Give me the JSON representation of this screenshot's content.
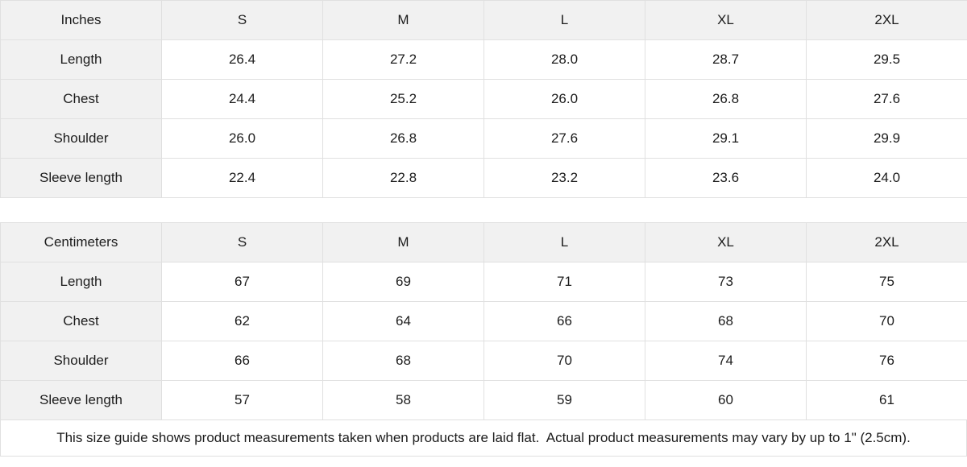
{
  "tables": [
    {
      "unit_label": "Inches",
      "sizes": [
        "S",
        "M",
        "L",
        "XL",
        "2XL"
      ],
      "rows": [
        {
          "label": "Length",
          "values": [
            "26.4",
            "27.2",
            "28.0",
            "28.7",
            "29.5"
          ]
        },
        {
          "label": "Chest",
          "values": [
            "24.4",
            "25.2",
            "26.0",
            "26.8",
            "27.6"
          ]
        },
        {
          "label": "Shoulder",
          "values": [
            "26.0",
            "26.8",
            "27.6",
            "29.1",
            "29.9"
          ]
        },
        {
          "label": "Sleeve length",
          "values": [
            "22.4",
            "22.8",
            "23.2",
            "23.6",
            "24.0"
          ]
        }
      ]
    },
    {
      "unit_label": "Centimeters",
      "sizes": [
        "S",
        "M",
        "L",
        "XL",
        "2XL"
      ],
      "rows": [
        {
          "label": "Length",
          "values": [
            "67",
            "69",
            "71",
            "73",
            "75"
          ]
        },
        {
          "label": "Chest",
          "values": [
            "62",
            "64",
            "66",
            "68",
            "70"
          ]
        },
        {
          "label": "Shoulder",
          "values": [
            "66",
            "68",
            "70",
            "74",
            "76"
          ]
        },
        {
          "label": "Sleeve length",
          "values": [
            "57",
            "58",
            "59",
            "60",
            "61"
          ]
        }
      ]
    }
  ],
  "footer": {
    "note": "This size guide shows product measurements taken when products are laid flat.  Actual product measurements may vary by up to 1\" (2.5cm)."
  },
  "colors": {
    "header_bg": "#f1f1f1",
    "border": "#e0e0e0",
    "text": "#1c1c1c"
  }
}
